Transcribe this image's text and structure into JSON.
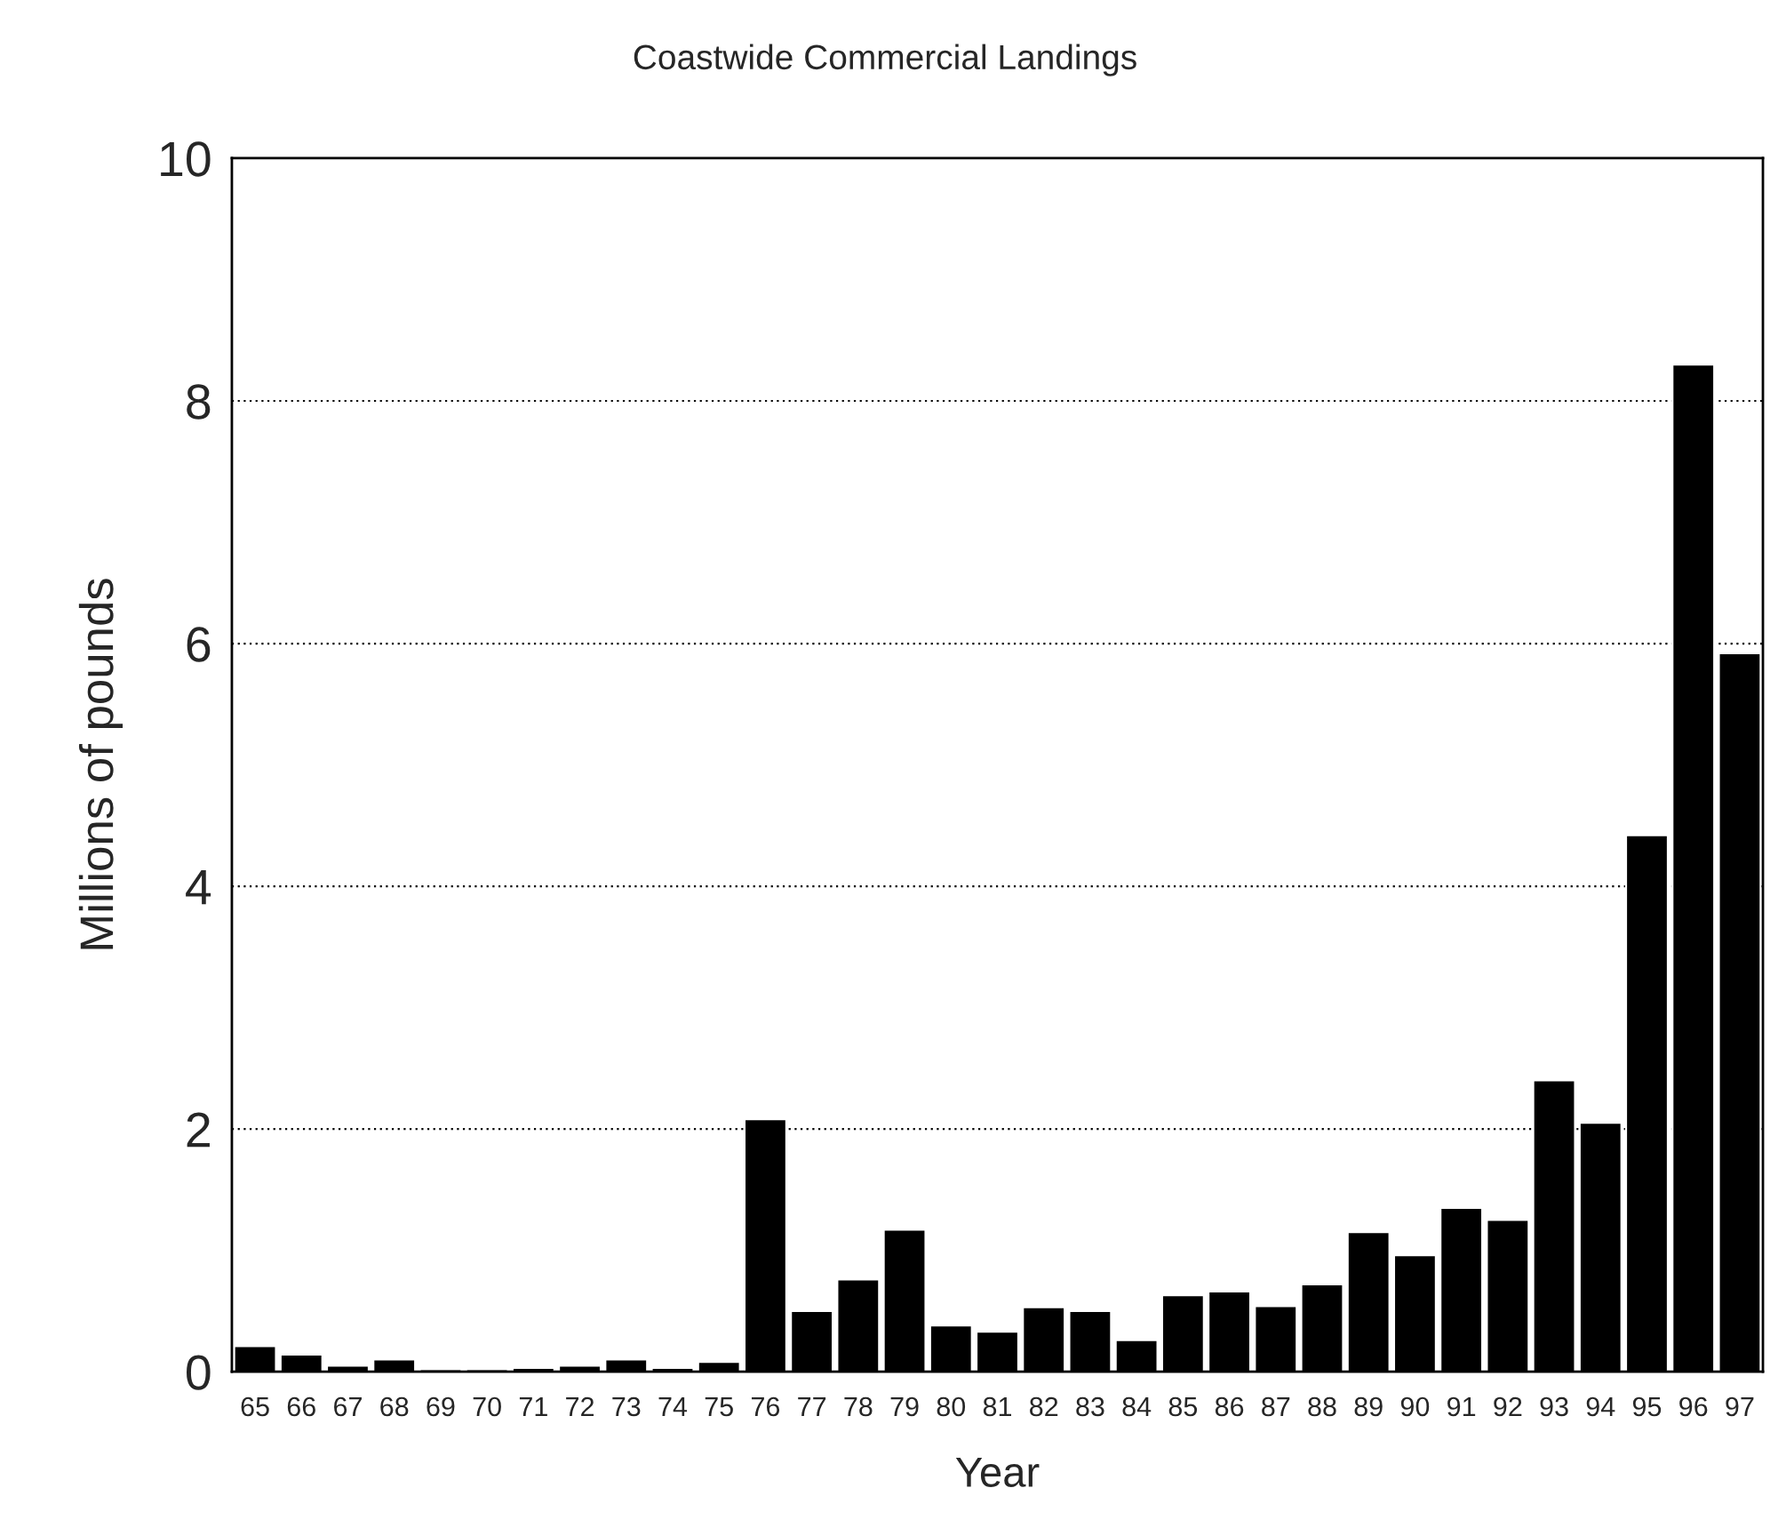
{
  "chart_data": {
    "type": "bar",
    "title": "Coastwide Commercial Landings",
    "xlabel": "Year",
    "ylabel": "Millions of pounds",
    "categories": [
      "65",
      "66",
      "67",
      "68",
      "69",
      "70",
      "71",
      "72",
      "73",
      "74",
      "75",
      "76",
      "77",
      "78",
      "79",
      "80",
      "81",
      "82",
      "83",
      "84",
      "85",
      "86",
      "87",
      "88",
      "89",
      "90",
      "91",
      "92",
      "93",
      "94",
      "95",
      "96",
      "97"
    ],
    "values": [
      0.21,
      0.14,
      0.05,
      0.1,
      0.02,
      0.02,
      0.03,
      0.05,
      0.1,
      0.03,
      0.08,
      2.08,
      0.5,
      0.76,
      1.17,
      0.38,
      0.33,
      0.53,
      0.5,
      0.26,
      0.63,
      0.66,
      0.54,
      0.72,
      1.15,
      0.96,
      1.35,
      1.25,
      2.4,
      2.05,
      4.42,
      8.3,
      5.92
    ],
    "color": "#000000",
    "ylim": [
      0,
      10
    ],
    "yticks": [
      0,
      2,
      4,
      6,
      8,
      10
    ],
    "grid": "y"
  }
}
